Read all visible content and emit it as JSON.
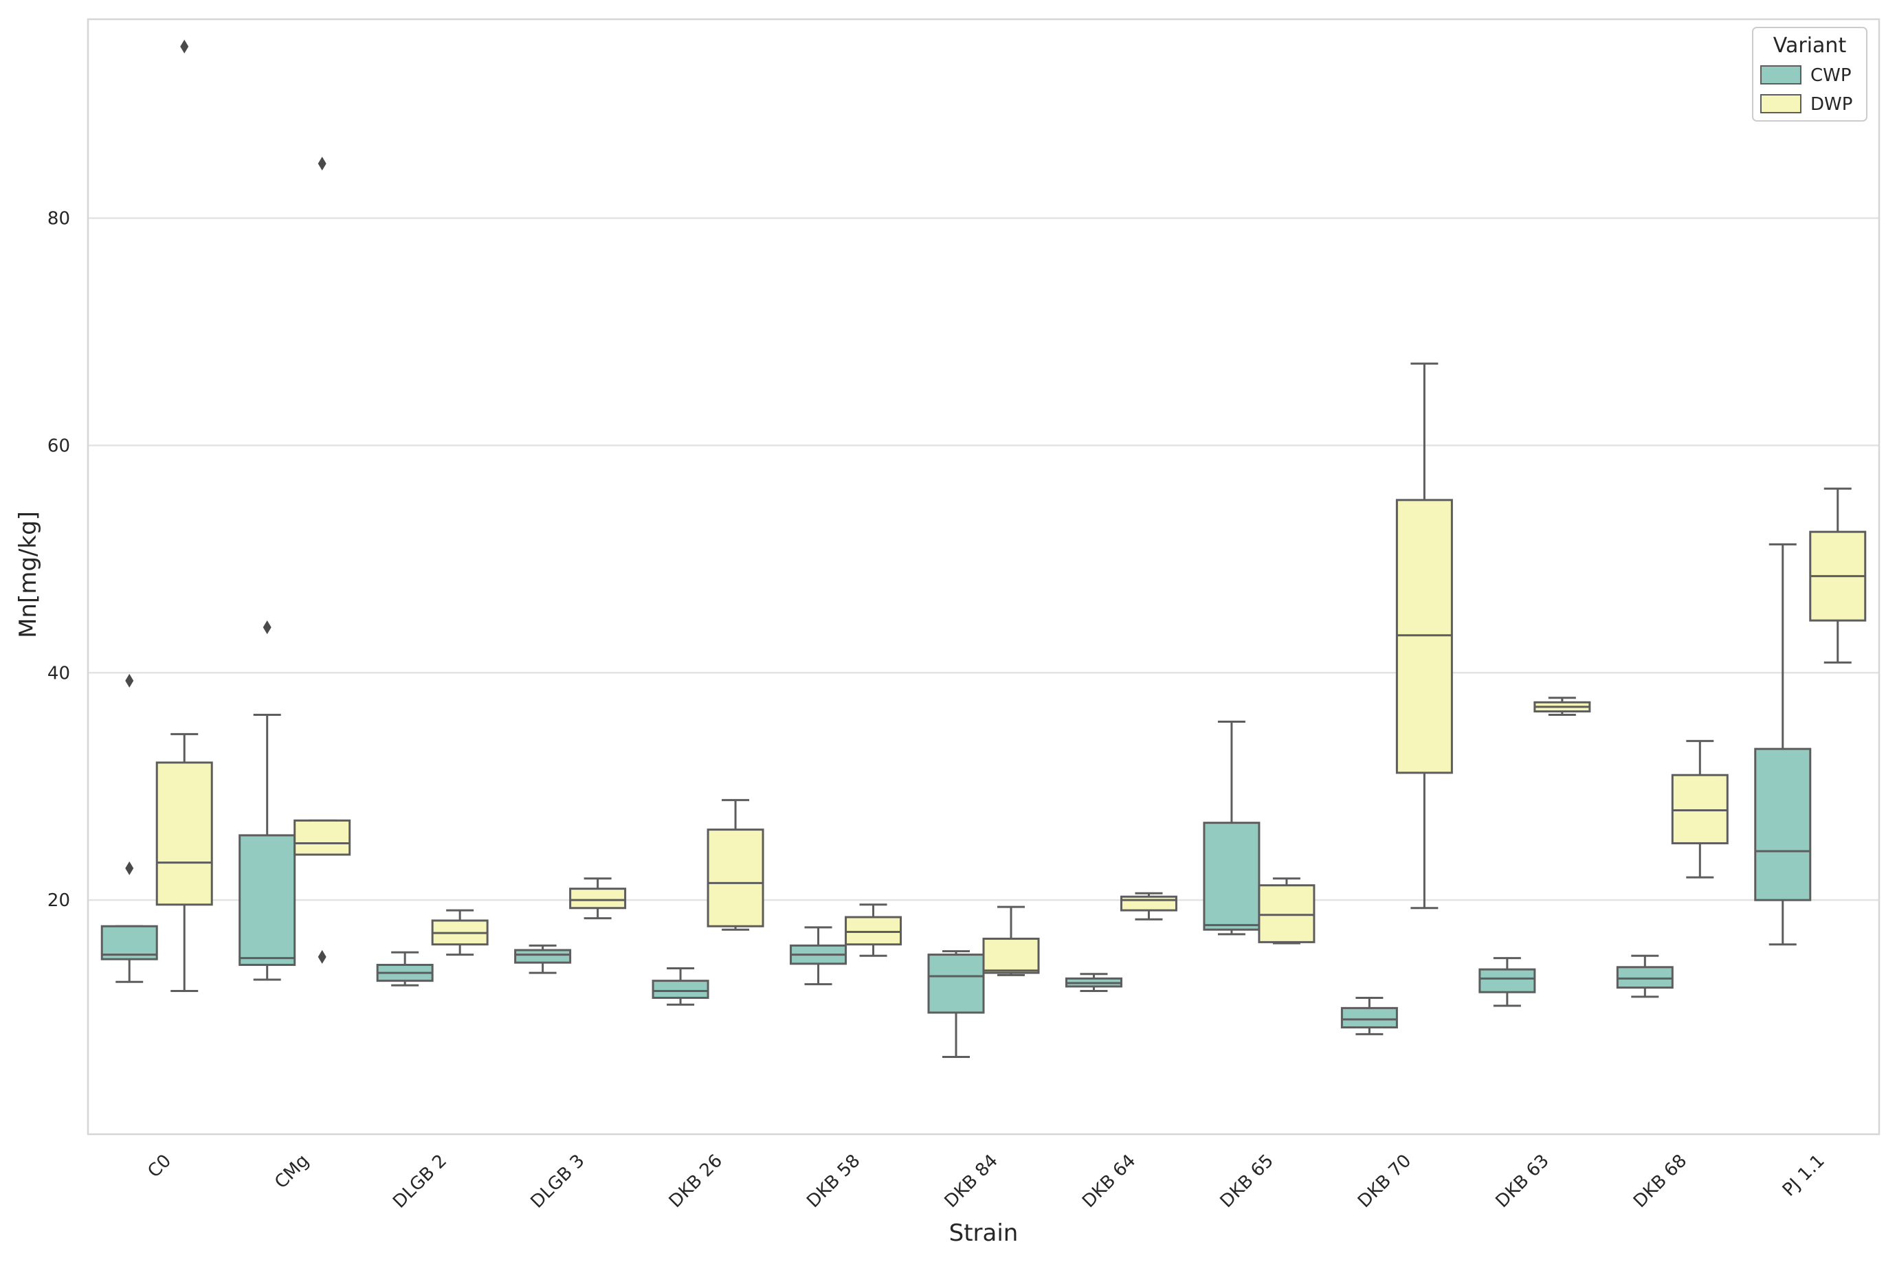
{
  "chart_data": {
    "type": "box",
    "xlabel": "Strain",
    "ylabel": "Mn[mg/kg]",
    "ylim": [
      -0.6,
      97.5
    ],
    "yticks": [
      20,
      40,
      60,
      80
    ],
    "grid": true,
    "legend": {
      "title": "Variant",
      "position": "top-right",
      "entries": [
        "CWP",
        "DWP"
      ]
    },
    "colors": {
      "CWP": "#93cbc1",
      "DWP": "#f6f6bb",
      "line": "#5d5d5d",
      "grid": "#e3e3e3",
      "frame": "#d6d6d6"
    },
    "categories": [
      "C0",
      "CMg",
      "DLGB 2",
      "DLGB 3",
      "DKB 26",
      "DKB 58",
      "DKB 84",
      "DKB 64",
      "DKB 65",
      "DKB 70",
      "DKB 63",
      "DKB 68",
      "PJ 1.1"
    ],
    "series": [
      {
        "name": "CWP",
        "boxes": [
          {
            "whislo": 12.8,
            "q1": 14.8,
            "med": 15.2,
            "q3": 17.7,
            "whishi": 17.7,
            "fliers": [
              22.8,
              39.3
            ]
          },
          {
            "whislo": 13.0,
            "q1": 14.3,
            "med": 14.9,
            "q3": 25.7,
            "whishi": 36.3,
            "fliers": [
              44.0
            ]
          },
          {
            "whislo": 12.5,
            "q1": 12.9,
            "med": 13.6,
            "q3": 14.3,
            "whishi": 15.4,
            "fliers": []
          },
          {
            "whislo": 13.6,
            "q1": 14.5,
            "med": 15.2,
            "q3": 15.6,
            "whishi": 16.0,
            "fliers": []
          },
          {
            "whislo": 10.8,
            "q1": 11.4,
            "med": 12.0,
            "q3": 12.9,
            "whishi": 14.0,
            "fliers": []
          },
          {
            "whislo": 12.6,
            "q1": 14.4,
            "med": 15.2,
            "q3": 16.0,
            "whishi": 17.6,
            "fliers": []
          },
          {
            "whislo": 6.2,
            "q1": 10.1,
            "med": 13.3,
            "q3": 15.2,
            "whishi": 15.5,
            "fliers": []
          },
          {
            "whislo": 12.0,
            "q1": 12.4,
            "med": 12.7,
            "q3": 13.1,
            "whishi": 13.5,
            "fliers": []
          },
          {
            "whislo": 17.0,
            "q1": 17.4,
            "med": 17.8,
            "q3": 26.8,
            "whishi": 35.7,
            "fliers": []
          },
          {
            "whislo": 8.2,
            "q1": 8.8,
            "med": 9.5,
            "q3": 10.5,
            "whishi": 11.4,
            "fliers": []
          },
          {
            "whislo": 10.7,
            "q1": 11.9,
            "med": 13.1,
            "q3": 13.9,
            "whishi": 14.9,
            "fliers": []
          },
          {
            "whislo": 11.5,
            "q1": 12.3,
            "med": 13.1,
            "q3": 14.1,
            "whishi": 15.1,
            "fliers": []
          },
          {
            "whislo": 16.1,
            "q1": 20.0,
            "med": 24.3,
            "q3": 33.3,
            "whishi": 51.3,
            "fliers": []
          }
        ]
      },
      {
        "name": "DWP",
        "boxes": [
          {
            "whislo": 12.0,
            "q1": 19.6,
            "med": 23.3,
            "q3": 32.1,
            "whishi": 34.6,
            "fliers": [
              95.1
            ]
          },
          {
            "whislo": 24.0,
            "q1": 24.0,
            "med": 25.0,
            "q3": 27.0,
            "whishi": 27.0,
            "fliers": [
              15.0,
              84.8
            ]
          },
          {
            "whislo": 15.2,
            "q1": 16.1,
            "med": 17.1,
            "q3": 18.2,
            "whishi": 19.1,
            "fliers": []
          },
          {
            "whislo": 18.4,
            "q1": 19.3,
            "med": 20.0,
            "q3": 21.0,
            "whishi": 21.9,
            "fliers": []
          },
          {
            "whislo": 17.4,
            "q1": 17.7,
            "med": 21.5,
            "q3": 26.2,
            "whishi": 28.8,
            "fliers": []
          },
          {
            "whislo": 15.1,
            "q1": 16.1,
            "med": 17.2,
            "q3": 18.5,
            "whishi": 19.6,
            "fliers": []
          },
          {
            "whislo": 13.4,
            "q1": 13.6,
            "med": 13.8,
            "q3": 16.6,
            "whishi": 19.4,
            "fliers": []
          },
          {
            "whislo": 18.3,
            "q1": 19.1,
            "med": 20.0,
            "q3": 20.3,
            "whishi": 20.6,
            "fliers": []
          },
          {
            "whislo": 16.2,
            "q1": 16.3,
            "med": 18.7,
            "q3": 21.3,
            "whishi": 21.9,
            "fliers": []
          },
          {
            "whislo": 19.3,
            "q1": 31.2,
            "med": 43.3,
            "q3": 55.2,
            "whishi": 67.2,
            "fliers": []
          },
          {
            "whislo": 36.3,
            "q1": 36.6,
            "med": 37.0,
            "q3": 37.4,
            "whishi": 37.8,
            "fliers": []
          },
          {
            "whislo": 22.0,
            "q1": 25.0,
            "med": 27.9,
            "q3": 31.0,
            "whishi": 34.0,
            "fliers": []
          },
          {
            "whislo": 40.9,
            "q1": 44.6,
            "med": 48.5,
            "q3": 52.4,
            "whishi": 56.2,
            "fliers": []
          }
        ]
      }
    ]
  }
}
